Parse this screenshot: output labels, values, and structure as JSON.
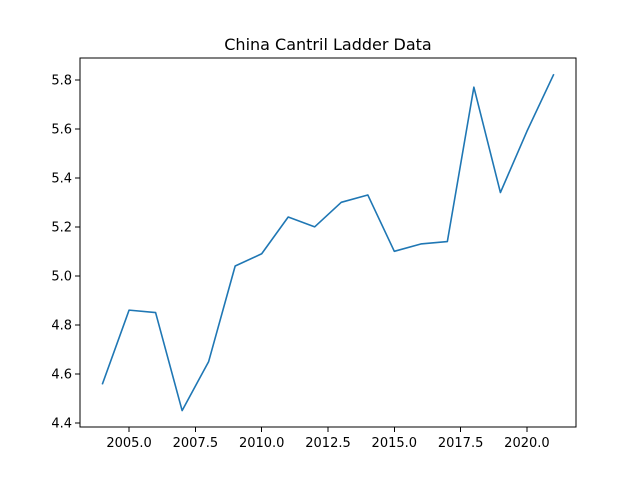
{
  "chart_data": {
    "type": "line",
    "title": "China Cantril Ladder Data",
    "xlabel": "",
    "ylabel": "",
    "xlim": [
      2003.15,
      2021.85
    ],
    "ylim": [
      4.383,
      5.889
    ],
    "x_ticks": [
      2005.0,
      2007.5,
      2010.0,
      2012.5,
      2015.0,
      2017.5,
      2020.0
    ],
    "x_tick_labels": [
      "2005.0",
      "2007.5",
      "2010.0",
      "2012.5",
      "2015.0",
      "2017.5",
      "2020.0"
    ],
    "y_ticks": [
      4.4,
      4.6,
      4.8,
      5.0,
      5.2,
      5.4,
      5.6,
      5.8
    ],
    "y_tick_labels": [
      "4.4",
      "4.6",
      "4.8",
      "5.0",
      "5.2",
      "5.4",
      "5.6",
      "5.8"
    ],
    "grid": false,
    "legend": "none",
    "series": [
      {
        "color": "#1f77b4",
        "x": [
          2004,
          2005,
          2006,
          2007,
          2008,
          2009,
          2010,
          2011,
          2012,
          2013,
          2014,
          2015,
          2016,
          2017,
          2018,
          2019,
          2020,
          2021
        ],
        "y": [
          4.56,
          4.86,
          4.85,
          4.45,
          4.65,
          5.04,
          5.09,
          5.24,
          5.2,
          5.3,
          5.33,
          5.1,
          5.13,
          5.14,
          5.77,
          5.34,
          5.59,
          5.82
        ]
      }
    ]
  }
}
